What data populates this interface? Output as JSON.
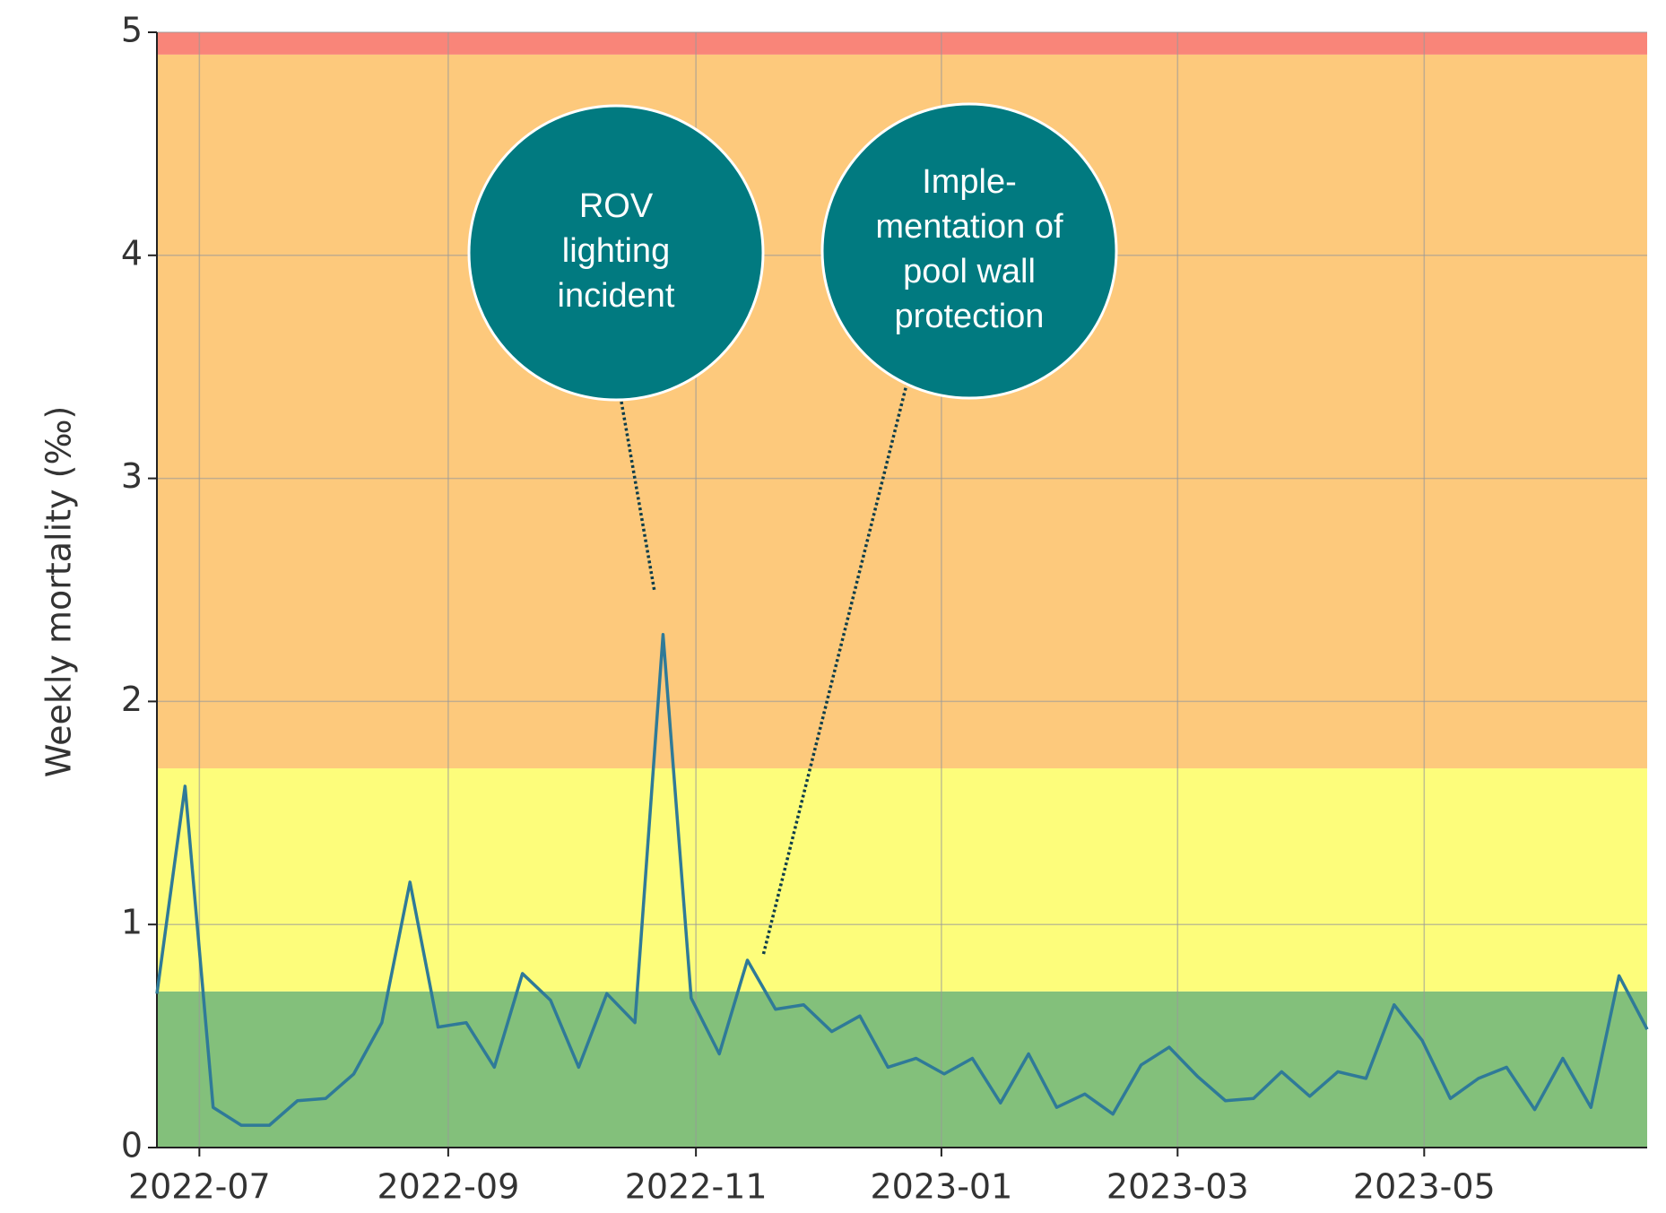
{
  "chart_data": {
    "type": "line",
    "ylabel": "Weekly mortality (‰)",
    "x": [
      0,
      1,
      2,
      3,
      4,
      5,
      6,
      7,
      8,
      9,
      10,
      11,
      12,
      13,
      14,
      15,
      16,
      17,
      18,
      19,
      20,
      21,
      22,
      23,
      24,
      25,
      26,
      27,
      28,
      29,
      30,
      31,
      32,
      33,
      34,
      35,
      36,
      37,
      38,
      39,
      40,
      41,
      42,
      43,
      44,
      45,
      46,
      47,
      48,
      49,
      50,
      51,
      52,
      53
    ],
    "series": [
      {
        "color": "#2f7a98",
        "values": [
          0.69,
          1.62,
          0.18,
          0.1,
          0.1,
          0.21,
          0.22,
          0.33,
          0.56,
          1.19,
          0.54,
          0.56,
          0.36,
          0.78,
          0.66,
          0.36,
          0.69,
          0.56,
          2.3,
          0.67,
          0.42,
          0.84,
          0.62,
          0.64,
          0.52,
          0.59,
          0.36,
          0.4,
          0.33,
          0.4,
          0.2,
          0.42,
          0.18,
          0.24,
          0.15,
          0.37,
          0.45,
          0.32,
          0.21,
          0.22,
          0.34,
          0.23,
          0.34,
          0.31,
          0.64,
          0.48,
          0.22,
          0.31,
          0.36,
          0.17,
          0.4,
          0.18,
          0.77,
          0.53
        ]
      }
    ],
    "xlim": [
      0,
      53
    ],
    "xticks": [
      {
        "value": 1.51,
        "label": "2022-07"
      },
      {
        "value": 10.36,
        "label": "2022-09"
      },
      {
        "value": 19.17,
        "label": "2022-11"
      },
      {
        "value": 27.9,
        "label": "2023-01"
      },
      {
        "value": 36.3,
        "label": "2023-03"
      },
      {
        "value": 45.07,
        "label": "2023-05"
      }
    ],
    "ylim": [
      0,
      5
    ],
    "yticks": [
      0,
      1,
      2,
      3,
      4,
      5
    ],
    "grid": true,
    "bands": [
      {
        "from": 0,
        "to": 0.7,
        "color": "#83c07b"
      },
      {
        "from": 0.7,
        "to": 1.7,
        "color": "#fdfd7b"
      },
      {
        "from": 1.7,
        "to": 4.9,
        "color": "#fdc97c"
      },
      {
        "from": 4.9,
        "to": 5,
        "color": "#f98579"
      }
    ],
    "annotations": [
      {
        "lines": [
          "ROV",
          "lighting",
          "incident"
        ]
      },
      {
        "lines": [
          "Imple-",
          "mentation of",
          "pool wall",
          "protection"
        ]
      }
    ],
    "annotation_color": "#017a80"
  }
}
